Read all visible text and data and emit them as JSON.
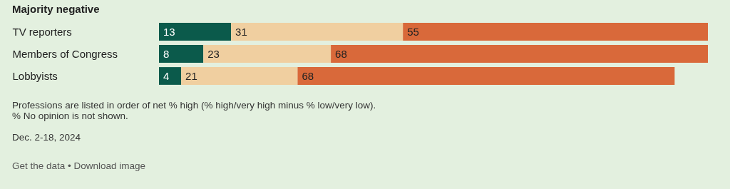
{
  "chart_data": {
    "type": "bar",
    "title": "Majority negative",
    "orientation": "horizontal",
    "stacked": true,
    "data_labels": true,
    "categories": [
      "TV reporters",
      "Members of Congress",
      "Lobbyists"
    ],
    "series": [
      {
        "color": "#0b5a4b",
        "values": [
          13,
          8,
          4
        ]
      },
      {
        "color": "#f0cfa0",
        "values": [
          31,
          23,
          21
        ]
      },
      {
        "color": "#d9693a",
        "values": [
          55,
          68,
          68
        ]
      }
    ],
    "grid": false,
    "annotations": [
      "Professions are listed in order of net % high (% high/very high minus % low/very low).",
      "% No opinion is not shown.",
      "Dec. 2-18, 2024",
      "Get the data • Download image"
    ]
  }
}
